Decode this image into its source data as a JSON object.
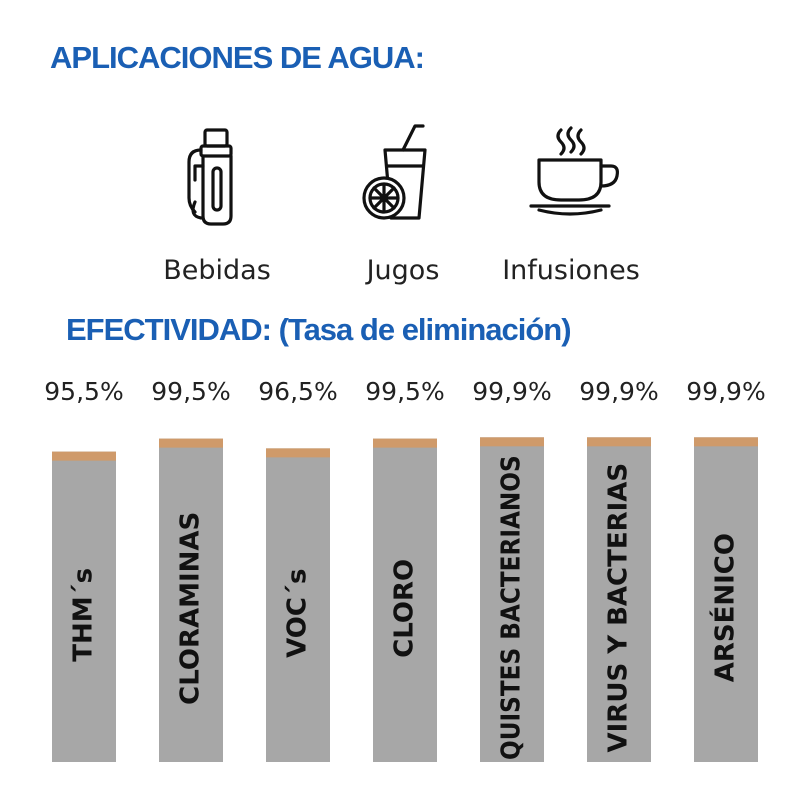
{
  "headings": {
    "applications": "APLICACIONES DE AGUA:",
    "effectiveness": "EFECTIVIDAD: (Tasa de eliminación)"
  },
  "applications": [
    {
      "label": "Bebidas",
      "icon": "thermos-bottle-icon"
    },
    {
      "label": "Jugos",
      "icon": "juice-glass-icon"
    },
    {
      "label": "Infusiones",
      "icon": "tea-cup-icon"
    }
  ],
  "colors": {
    "heading": "#1a5fb4",
    "bar": "#a7a7a7",
    "bar_cap": "#cf9a6a",
    "text": "#222222"
  },
  "chart_data": {
    "type": "bar",
    "title": "",
    "xlabel": "",
    "ylabel": "",
    "categories": [
      "THM´s",
      "CLORAMINAS",
      "VOC´s",
      "CLORO",
      "QUISTES BACTERIANOS",
      "VIRUS Y BACTERIAS",
      "ARSÉNICO"
    ],
    "values": [
      95.5,
      99.5,
      96.5,
      99.5,
      99.9,
      99.9,
      99.9
    ],
    "value_labels": [
      "95,5%",
      "99,5%",
      "96,5%",
      "99,5%",
      "99,9%",
      "99,9%",
      "99,9%"
    ],
    "ylim": [
      0,
      100
    ],
    "grid": false,
    "legend": "none"
  }
}
